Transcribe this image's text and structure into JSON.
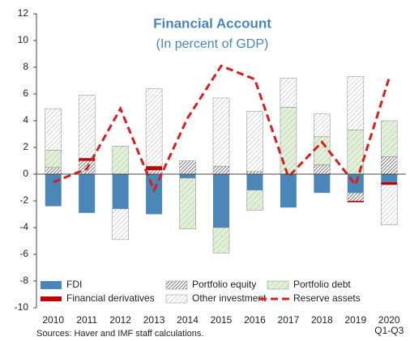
{
  "chart_data": {
    "type": "bar",
    "stacked": true,
    "title": "Financial Account",
    "subtitle": "(In percent of GDP)",
    "source": "Sources: Haver and IMF staff calculations.",
    "categories": [
      "2010",
      "2011",
      "2012",
      "2013",
      "2014",
      "2015",
      "2016",
      "2017",
      "2018",
      "2019",
      "2020 Q1-Q3"
    ],
    "series": [
      {
        "name": "FDI",
        "color": "#4a86b8",
        "values": [
          -2.4,
          -2.9,
          -2.6,
          -3.0,
          -0.3,
          -4.0,
          -1.2,
          -2.5,
          -1.4,
          -1.4,
          -0.6
        ]
      },
      {
        "name": "Portfolio equity",
        "color": "url(#hatch-dense)",
        "values": [
          0.5,
          1.0,
          0,
          0.3,
          1.0,
          0.6,
          0.2,
          0,
          0.7,
          -0.6,
          1.3
        ]
      },
      {
        "name": "Portfolio debt",
        "color": "url(#hatch-green)",
        "values": [
          1.3,
          0,
          2.1,
          0,
          -3.8,
          -1.9,
          -1.5,
          5.0,
          2.1,
          3.3,
          2.7
        ]
      },
      {
        "name": "Financial derivatives",
        "color": "#c00000",
        "values": [
          0,
          0.2,
          0,
          0.3,
          0,
          0,
          0,
          0,
          0,
          -0.1,
          -0.2
        ]
      },
      {
        "name": "Other investment",
        "color": "url(#hatch-light)",
        "values": [
          3.1,
          4.7,
          -2.3,
          5.8,
          0,
          5.1,
          4.5,
          2.2,
          1.7,
          4.0,
          -3.0
        ]
      },
      {
        "name": "Reserve assets",
        "type": "line",
        "color": "#d42020",
        "values": [
          -0.6,
          0.4,
          4.9,
          -1.2,
          4.2,
          8.1,
          7.1,
          -0.2,
          2.4,
          -0.8,
          7.2
        ]
      }
    ],
    "ylim": [
      -10,
      12
    ],
    "yticks": [
      -10,
      -8,
      -6,
      -4,
      -2,
      0,
      2,
      4,
      6,
      8,
      10,
      12
    ]
  }
}
